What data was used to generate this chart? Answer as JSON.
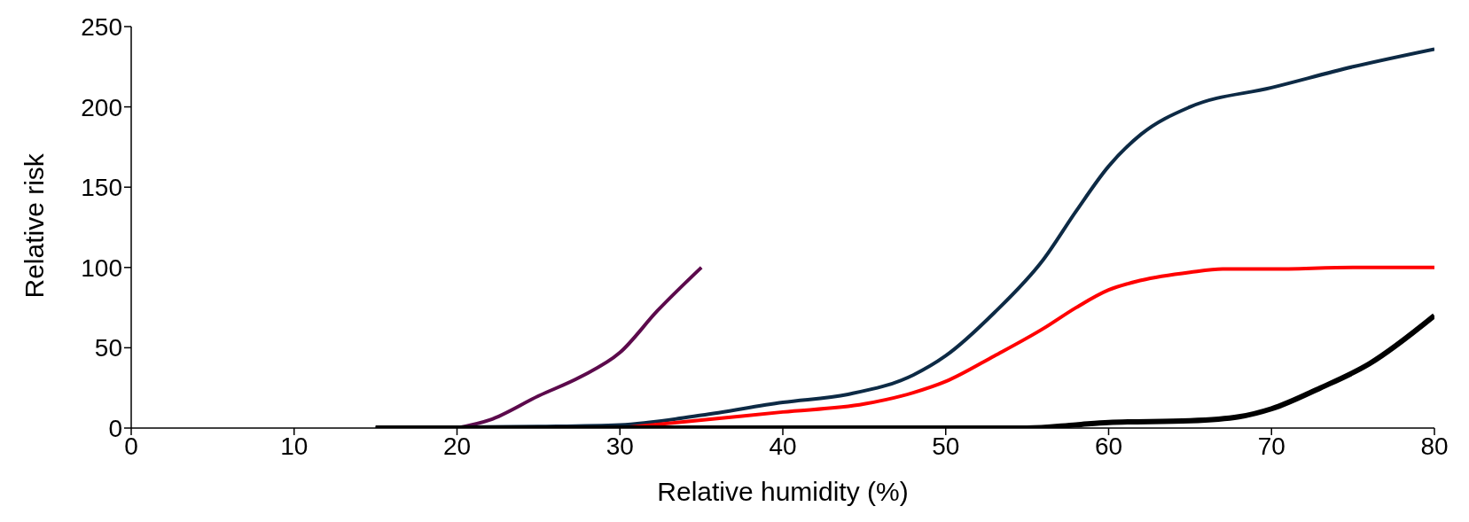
{
  "chart_data": {
    "type": "line",
    "xlabel": "Relative humidity (%)",
    "ylabel": "Relative risk",
    "xlim": [
      0,
      80
    ],
    "xticks": [
      0,
      10,
      20,
      30,
      40,
      50,
      60,
      70,
      80
    ],
    "ylim": [
      0,
      250
    ],
    "yticks": [
      0,
      50,
      100,
      150,
      200,
      250
    ],
    "grid": false,
    "legend": false,
    "marker": "none",
    "line_style": "solid",
    "series": [
      {
        "color": "#5c0a4c",
        "x": [
          20,
          22,
          25,
          27.6,
          30,
          32.3,
          35
        ],
        "values": [
          0,
          5,
          20,
          32,
          47,
          73,
          100
        ]
      },
      {
        "color": "#0d2a45",
        "x": [
          15,
          20,
          25,
          30,
          35,
          40,
          44,
          48,
          50,
          53,
          56,
          58,
          60,
          62,
          65,
          70,
          75,
          80
        ],
        "values": [
          0,
          0.5,
          1,
          2,
          8,
          16,
          21,
          33,
          45,
          72,
          105,
          135,
          163,
          183,
          200,
          212,
          225,
          236
        ]
      },
      {
        "color": "#ff0000",
        "x": [
          30,
          32,
          35,
          40,
          45,
          48,
          50,
          53,
          56,
          58,
          60,
          62,
          65,
          67,
          70,
          75,
          80
        ],
        "values": [
          0,
          2,
          5,
          10,
          15,
          22,
          29,
          45,
          62,
          75,
          86,
          92,
          97,
          99,
          99,
          100,
          100
        ]
      },
      {
        "color": "#000000",
        "x": [
          15,
          20,
          30,
          40,
          50,
          55,
          58,
          60,
          65,
          68,
          70,
          73,
          76,
          80
        ],
        "values": [
          0,
          0,
          0,
          0,
          0,
          0,
          2,
          3.5,
          4.5,
          7,
          12,
          25,
          40,
          70
        ]
      }
    ]
  }
}
